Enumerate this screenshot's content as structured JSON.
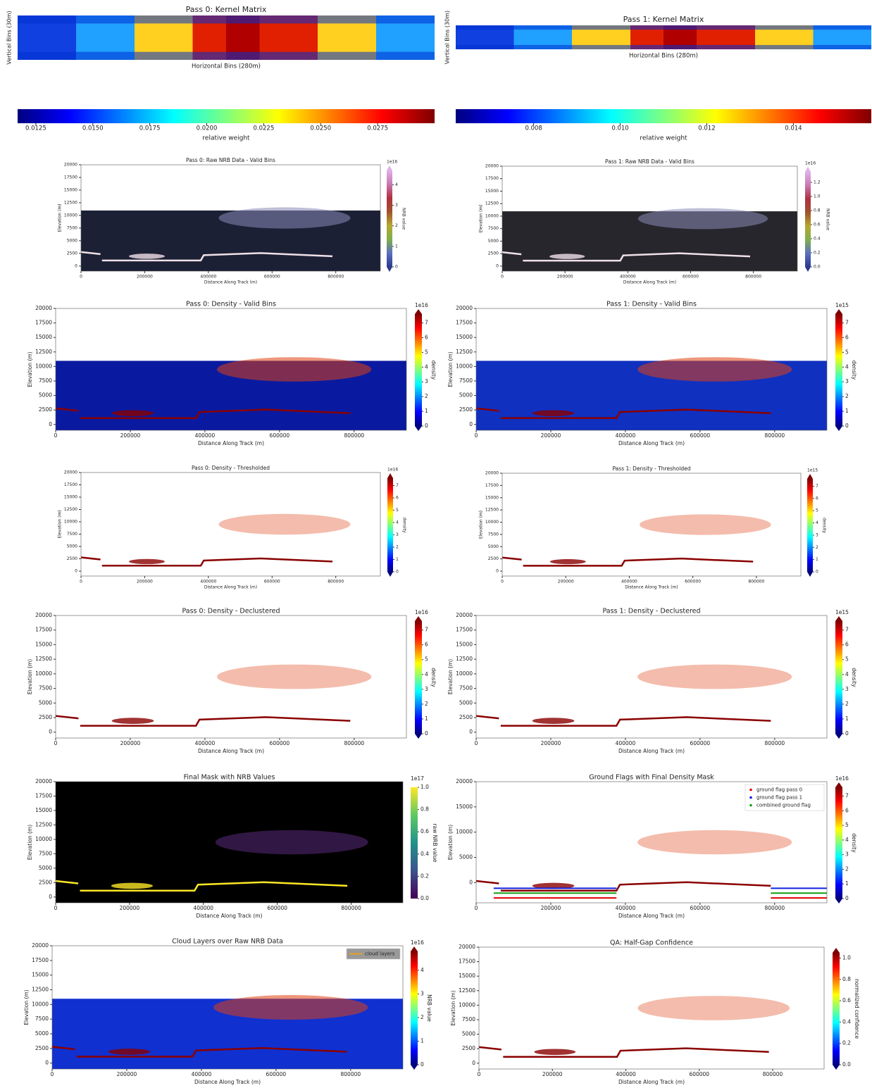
{
  "chart_data": [
    {
      "type": "kernel",
      "title": "Pass 0: Kernel Matrix",
      "xlabel": "Horizontal Bins (280m)",
      "ylabel": "Vertical Bins (30m)",
      "colorbar": {
        "orientation": "horizontal",
        "cmap": "jet",
        "label": "relative weight",
        "lim": [
          0.0117,
          0.03
        ],
        "ticks": [
          0.0125,
          {
            "value": 0.015,
            "label": "0.0150"
          },
          0.0175,
          {
            "value": 0.02,
            "label": "0.0200"
          },
          0.0225,
          {
            "value": 0.025,
            "label": "0.0250"
          },
          0.0275
        ]
      }
    },
    {
      "type": "kernel",
      "title": "Pass 1: Kernel Matrix",
      "xlabel": "Horizontal Bins (280m)",
      "ylabel": "Vertical Bins (30m)",
      "colorbar": {
        "orientation": "horizontal",
        "cmap": "jet",
        "label": "relative weight",
        "lim": [
          0.0062,
          0.0158
        ],
        "ticks": [
          0.008,
          {
            "value": 0.01,
            "label": "0.010"
          },
          0.012,
          0.014
        ]
      }
    },
    {
      "type": "heatmap",
      "title": "Pass 0: Raw NRB Data - Valid Bins",
      "xlabel": "Distance Along Track (m)",
      "ylabel": "Elevation (m)",
      "xlim": [
        0,
        940000
      ],
      "ylim": [
        -1000,
        20000
      ],
      "xticks": [
        0,
        200000,
        400000,
        600000,
        800000
      ],
      "yticks": [
        0,
        2500,
        5000,
        7500,
        10000,
        12500,
        15000,
        17500,
        20000
      ],
      "background": "#1c2035",
      "background_fill": "lower",
      "colorbar": {
        "cmap": "nrb",
        "label": "NRB value",
        "offset": "1e16",
        "lim": [
          0,
          4.7
        ],
        "ticks": [
          0,
          1,
          2,
          3,
          4
        ]
      }
    },
    {
      "type": "heatmap",
      "title": "Pass 1: Raw NRB Data - Valid Bins",
      "xlabel": "Distance Along Track (m)",
      "ylabel": "Elevation (m)",
      "xlim": [
        0,
        940000
      ],
      "ylim": [
        -1000,
        20000
      ],
      "xticks": [
        0,
        200000,
        400000,
        600000,
        800000
      ],
      "yticks": [
        0,
        2500,
        5000,
        7500,
        10000,
        12500,
        15000,
        17500,
        20000
      ],
      "background": "#26262c",
      "background_fill": "lower",
      "colorbar": {
        "cmap": "nrb",
        "label": "NRB value",
        "offset": "1e16",
        "lim": [
          0,
          1.35
        ],
        "ticks": [
          {
            "value": 0,
            "label": "0.0"
          },
          0.2,
          0.4,
          0.6,
          0.8,
          {
            "value": 1,
            "label": "1.0"
          },
          1.2
        ]
      }
    },
    {
      "type": "heatmap",
      "title": "Pass 0: Density - Valid Bins",
      "xlabel": "Distance Along Track (m)",
      "ylabel": "Elevation (m)",
      "xlim": [
        0,
        940000
      ],
      "ylim": [
        -1000,
        20000
      ],
      "xticks": [
        0,
        200000,
        400000,
        600000,
        800000
      ],
      "yticks": [
        0,
        2500,
        5000,
        7500,
        10000,
        12500,
        15000,
        17500,
        20000
      ],
      "background": "#0a1aa0",
      "background_fill": "lower",
      "colorbar": {
        "cmap": "jet",
        "label": "density",
        "offset": "1e16",
        "lim": [
          0,
          7.6
        ],
        "ticks": [
          0,
          1,
          2,
          3,
          4,
          5,
          6,
          7
        ]
      }
    },
    {
      "type": "heatmap",
      "title": "Pass 1: Density - Valid Bins",
      "xlabel": "Distance Along Track (m)",
      "ylabel": "Elevation (m)",
      "xlim": [
        0,
        940000
      ],
      "ylim": [
        -1000,
        20000
      ],
      "xticks": [
        0,
        200000,
        400000,
        600000,
        800000
      ],
      "yticks": [
        0,
        2500,
        5000,
        7500,
        10000,
        12500,
        15000,
        17500,
        20000
      ],
      "background": "#1030c0",
      "background_fill": "lower",
      "colorbar": {
        "cmap": "jet",
        "label": "density",
        "offset": "1e15",
        "lim": [
          0,
          7.6
        ],
        "ticks": [
          0,
          1,
          2,
          3,
          4,
          5,
          6,
          7
        ]
      }
    },
    {
      "type": "heatmap",
      "title": "Pass 0: Density - Thresholded",
      "xlabel": "Distance Along Track (m)",
      "ylabel": "Elevation (m)",
      "xlim": [
        0,
        940000
      ],
      "ylim": [
        -1000,
        20000
      ],
      "xticks": [
        0,
        200000,
        400000,
        600000,
        800000
      ],
      "yticks": [
        0,
        2500,
        5000,
        7500,
        10000,
        12500,
        15000,
        17500,
        20000
      ],
      "colorbar": {
        "cmap": "jet",
        "label": "density",
        "offset": "1e16",
        "lim": [
          0,
          7.6
        ],
        "ticks": [
          0,
          1,
          2,
          3,
          4,
          5,
          6,
          7
        ]
      }
    },
    {
      "type": "heatmap",
      "title": "Pass 1: Density - Thresholded",
      "xlabel": "Distance Along Track (m)",
      "ylabel": "Elevation (m)",
      "xlim": [
        0,
        940000
      ],
      "ylim": [
        -1000,
        20000
      ],
      "xticks": [
        0,
        200000,
        400000,
        600000,
        800000
      ],
      "yticks": [
        0,
        2500,
        5000,
        7500,
        10000,
        12500,
        15000,
        17500,
        20000
      ],
      "colorbar": {
        "cmap": "jet",
        "label": "density",
        "offset": "1e15",
        "lim": [
          0,
          7.6
        ],
        "ticks": [
          0,
          1,
          2,
          3,
          4,
          5,
          6,
          7
        ]
      }
    },
    {
      "type": "heatmap",
      "title": "Pass 0: Density - Declustered",
      "xlabel": "Distance Along Track (m)",
      "ylabel": "Elevation (m)",
      "xlim": [
        0,
        940000
      ],
      "ylim": [
        -1000,
        20000
      ],
      "xticks": [
        0,
        200000,
        400000,
        600000,
        800000
      ],
      "yticks": [
        0,
        2500,
        5000,
        7500,
        10000,
        12500,
        15000,
        17500,
        20000
      ],
      "colorbar": {
        "cmap": "jet",
        "label": "density",
        "offset": "1e16",
        "lim": [
          0,
          7.6
        ],
        "ticks": [
          0,
          1,
          2,
          3,
          4,
          5,
          6,
          7
        ]
      }
    },
    {
      "type": "heatmap",
      "title": "Pass 1: Density - Declustered",
      "xlabel": "Distance Along Track (m)",
      "ylabel": "Elevation (m)",
      "xlim": [
        0,
        940000
      ],
      "ylim": [
        -1000,
        20000
      ],
      "xticks": [
        0,
        200000,
        400000,
        600000,
        800000
      ],
      "yticks": [
        0,
        2500,
        5000,
        7500,
        10000,
        12500,
        15000,
        17500,
        20000
      ],
      "colorbar": {
        "cmap": "jet",
        "label": "density",
        "offset": "1e15",
        "lim": [
          0,
          7.6
        ],
        "ticks": [
          0,
          1,
          2,
          3,
          4,
          5,
          6,
          7
        ]
      }
    },
    {
      "type": "heatmap",
      "title": "Final Mask with NRB Values",
      "xlabel": "Distance Along Track (m)",
      "ylabel": "Elevation (m)",
      "xlim": [
        0,
        940000
      ],
      "ylim": [
        -1000,
        20000
      ],
      "xticks": [
        0,
        200000,
        400000,
        600000,
        800000
      ],
      "yticks": [
        0,
        2500,
        5000,
        7500,
        10000,
        12500,
        15000,
        17500,
        20000
      ],
      "background": "#000000",
      "background_fill": "full",
      "colorbar": {
        "cmap": "viridis",
        "label": "raw NRB value",
        "offset": "1e17",
        "lim": [
          0,
          1
        ],
        "ticks": [
          {
            "value": 0,
            "label": "0.0"
          },
          0.2,
          0.4,
          0.6,
          0.8,
          {
            "value": 1,
            "label": "1.0"
          }
        ]
      }
    },
    {
      "type": "heatmap",
      "title": "Ground Flags with Final Density Mask",
      "xlabel": "Distance Along Track (m)",
      "ylabel": "Elevation (m)",
      "xlim": [
        0,
        940000
      ],
      "ylim": [
        -4000,
        20000
      ],
      "xticks": [
        0,
        200000,
        400000,
        600000,
        800000
      ],
      "yticks": [
        0,
        5000,
        10000,
        15000,
        20000
      ],
      "legend": {
        "position": "upper right",
        "entries": [
          {
            "name": "ground flag pass 0",
            "color": "#e00000"
          },
          {
            "name": "ground flag pass 1",
            "color": "#1020e0"
          },
          {
            "name": "combined ground flag",
            "color": "#10a010"
          }
        ]
      },
      "colorbar": {
        "cmap": "jet",
        "label": "density",
        "offset": "1e16",
        "lim": [
          0,
          7.6
        ],
        "ticks": [
          0,
          1,
          2,
          3,
          4,
          5,
          6,
          7
        ]
      }
    },
    {
      "type": "heatmap",
      "title": "Cloud Layers over Raw NRB Data",
      "xlabel": "Distance Along Track (m)",
      "ylabel": "Elevation (m)",
      "xlim": [
        0,
        940000
      ],
      "ylim": [
        -1000,
        20000
      ],
      "xticks": [
        0,
        200000,
        400000,
        600000,
        800000
      ],
      "yticks": [
        0,
        2500,
        5000,
        7500,
        10000,
        12500,
        15000,
        17500,
        20000
      ],
      "background": "#1030d0",
      "background_fill": "lower",
      "legend": {
        "position": "upper right",
        "entries": [
          {
            "name": "cloud layers",
            "color": "#e8a020"
          }
        ]
      },
      "colorbar": {
        "cmap": "jet",
        "label": "NRB value",
        "offset": "1e16",
        "lim": [
          0,
          4.8
        ],
        "ticks": [
          0,
          1,
          2,
          3,
          4
        ]
      }
    },
    {
      "type": "heatmap",
      "title": "QA: Half-Gap Confidence",
      "xlabel": "Distance Along Track (m)",
      "ylabel": "Elevation (m)",
      "xlim": [
        0,
        940000
      ],
      "ylim": [
        -1000,
        20000
      ],
      "xticks": [
        0,
        200000,
        400000,
        600000,
        800000
      ],
      "yticks": [
        0,
        2500,
        5000,
        7500,
        10000,
        12500,
        15000,
        17500,
        20000
      ],
      "colorbar": {
        "cmap": "jet",
        "label": "normalized confidence",
        "lim": [
          0,
          1.05
        ],
        "ticks": [
          {
            "value": 0,
            "label": "0.0"
          },
          0.2,
          0.4,
          0.6,
          0.8,
          {
            "value": 1,
            "label": "1.0"
          }
        ]
      }
    }
  ]
}
